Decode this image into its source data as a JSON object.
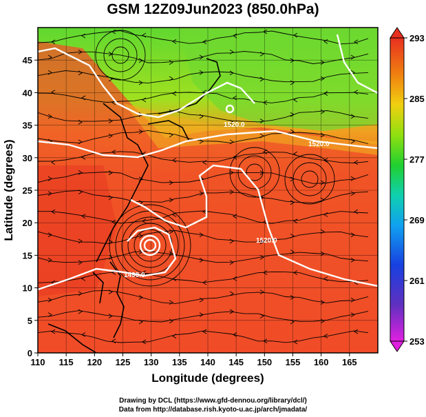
{
  "title": "GSM 12Z09Jun2023 (850.0hPa)",
  "x_axis": {
    "label": "Longitude (degrees)",
    "min": 110,
    "max": 170,
    "ticks": [
      "110",
      "115",
      "120",
      "125",
      "130",
      "135",
      "140",
      "145",
      "150",
      "155",
      "160",
      "165"
    ]
  },
  "y_axis": {
    "label": "Latitude  (degrees)",
    "min": 0,
    "max": 50,
    "ticks": [
      "0",
      "5",
      "10",
      "15",
      "20",
      "25",
      "30",
      "35",
      "40",
      "45"
    ]
  },
  "colorbar": {
    "min": 253,
    "max": 293,
    "labels": [
      "293",
      "285",
      "277",
      "269",
      "261",
      "253"
    ],
    "colors": [
      "#e020e0",
      "#5030c0",
      "#1850e8",
      "#10b8f0",
      "#10d8a0",
      "#30d020",
      "#a0e010",
      "#f0d010",
      "#f07010",
      "#e83820"
    ]
  },
  "contours": {
    "labels": [
      "1520.0",
      "1520.0",
      "1520.0",
      "1490.0"
    ]
  },
  "credits": {
    "line1": "Drawing by DCL (https://www.gfd-dennou.org/library/dcl/)",
    "line2": "Data from http://database.rish.kyoto-u.ac.jp/arch/jmadata/"
  }
}
